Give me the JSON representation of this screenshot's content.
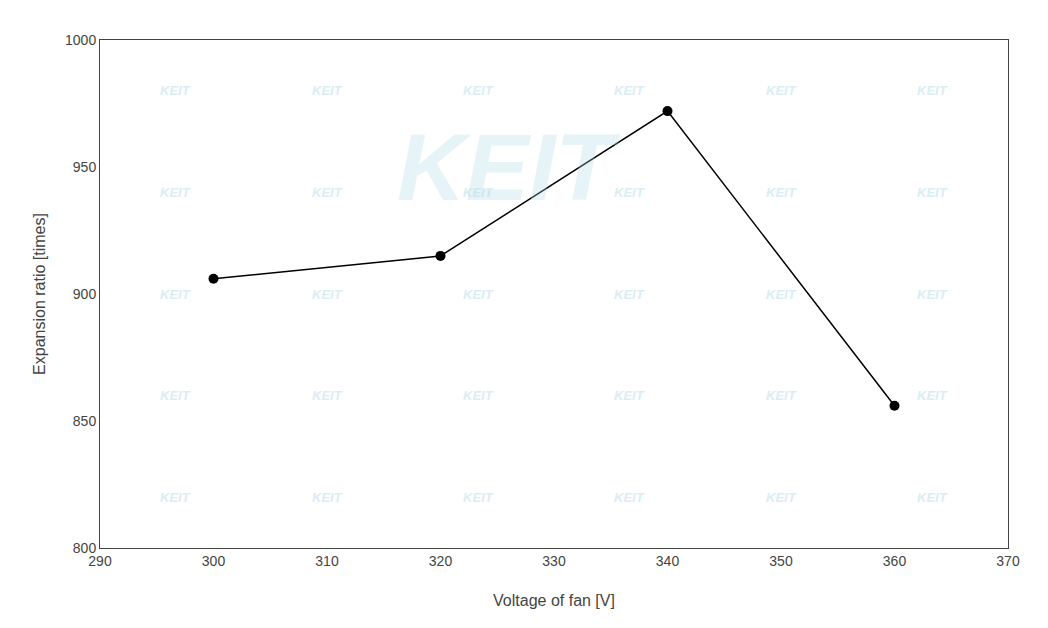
{
  "chart_data": {
    "type": "line",
    "x": [
      300,
      320,
      340,
      360
    ],
    "values": [
      906,
      915,
      972,
      856
    ],
    "xlabel": "Voltage of fan [V]",
    "ylabel": "Expansion ratio [times]",
    "xlim": [
      290,
      370
    ],
    "ylim": [
      800,
      1000
    ],
    "xticks": [
      290,
      300,
      310,
      320,
      330,
      340,
      350,
      360,
      370
    ],
    "yticks": [
      800,
      850,
      900,
      950,
      1000
    ],
    "color": "black",
    "marker": "circle",
    "grid": false,
    "annotations": [
      "KEIT"
    ]
  }
}
